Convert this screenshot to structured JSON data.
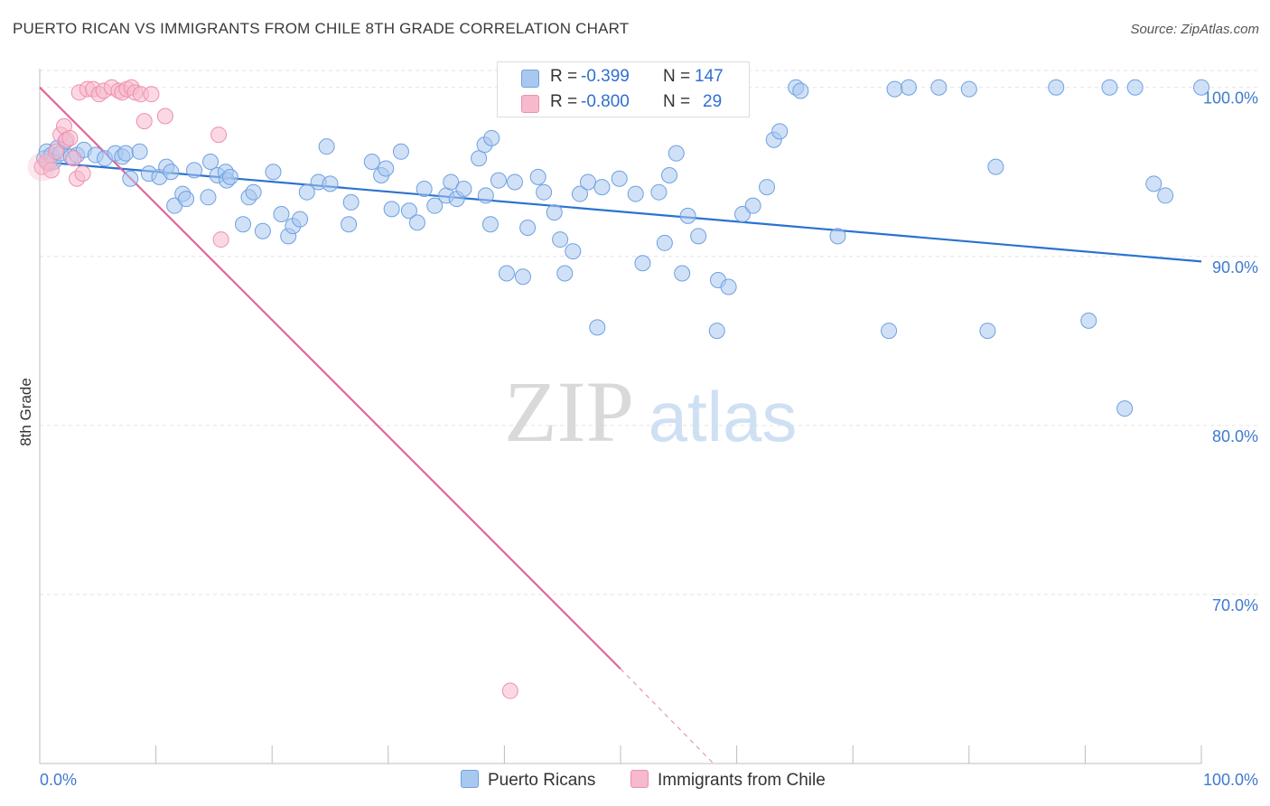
{
  "title": "PUERTO RICAN VS IMMIGRANTS FROM CHILE 8TH GRADE CORRELATION CHART",
  "source": "Source: ZipAtlas.com",
  "watermark": {
    "zip": "ZIP",
    "atlas": "atlas"
  },
  "colors": {
    "blue_fill": "#a9c8f0",
    "blue_stroke": "#6ea0e0",
    "blue_line": "#2a72d0",
    "pink_fill": "#f7b9cc",
    "pink_stroke": "#ee8fae",
    "pink_line": "#e0679a",
    "axis_label": "#3e7ad0",
    "grid": "#e3e3e3"
  },
  "legend_top": {
    "rows": [
      {
        "r_label": "R = ",
        "r_value": "-0.399",
        "n_label": "N = ",
        "n_value": "147",
        "color": "#a9c8f0",
        "border": "#6ea0e0"
      },
      {
        "r_label": "R = ",
        "r_value": "-0.800",
        "n_label": "N = ",
        "n_value": "29",
        "color": "#f7b9cc",
        "border": "#ee8fae"
      }
    ]
  },
  "legend_bottom": [
    {
      "label": "Puerto Ricans",
      "color": "#a9c8f0",
      "border": "#6ea0e0"
    },
    {
      "label": "Immigrants from Chile",
      "color": "#f7b9cc",
      "border": "#ee8fae"
    }
  ],
  "chart_data": {
    "type": "scatter",
    "title": "PUERTO RICAN VS IMMIGRANTS FROM CHILE 8TH GRADE CORRELATION CHART",
    "xlabel": "",
    "ylabel": "8th Grade",
    "xlim": [
      0,
      100
    ],
    "ylim": [
      60,
      101
    ],
    "x_tick_labels": [
      "0.0%",
      "100.0%"
    ],
    "y_ticks": [
      70,
      80,
      90,
      100
    ],
    "y_tick_labels": [
      "70.0%",
      "80.0%",
      "90.0%",
      "100.0%"
    ],
    "grid": "horizontal dashed",
    "legend": "top-center",
    "series": [
      {
        "name": "Puerto Ricans",
        "color": "#a9c8f0",
        "points": [
          [
            0.4,
            95.8
          ],
          [
            0.6,
            96.2
          ],
          [
            0.8,
            95.5
          ],
          [
            1.0,
            96.0
          ],
          [
            1.2,
            95.6
          ],
          [
            1.5,
            96.4
          ],
          [
            1.8,
            96.1
          ],
          [
            2.2,
            96.8
          ],
          [
            2.7,
            95.9
          ],
          [
            3.2,
            96.0
          ],
          [
            3.8,
            96.3
          ],
          [
            4.8,
            96.0
          ],
          [
            5.6,
            95.8
          ],
          [
            6.5,
            96.1
          ],
          [
            7.1,
            95.9
          ],
          [
            7.4,
            96.1
          ],
          [
            7.8,
            94.6
          ],
          [
            8.6,
            96.2
          ],
          [
            9.4,
            94.9
          ],
          [
            10.3,
            94.7
          ],
          [
            10.9,
            95.3
          ],
          [
            11.3,
            95.0
          ],
          [
            11.6,
            93.0
          ],
          [
            12.3,
            93.7
          ],
          [
            12.6,
            93.4
          ],
          [
            13.3,
            95.1
          ],
          [
            14.5,
            93.5
          ],
          [
            14.7,
            95.6
          ],
          [
            15.3,
            94.8
          ],
          [
            16.0,
            95.0
          ],
          [
            16.1,
            94.5
          ],
          [
            16.4,
            94.7
          ],
          [
            17.5,
            91.9
          ],
          [
            18.0,
            93.5
          ],
          [
            18.4,
            93.8
          ],
          [
            19.2,
            91.5
          ],
          [
            20.1,
            95.0
          ],
          [
            20.8,
            92.5
          ],
          [
            21.4,
            91.2
          ],
          [
            21.8,
            91.8
          ],
          [
            22.4,
            92.2
          ],
          [
            23.0,
            93.8
          ],
          [
            24.0,
            94.4
          ],
          [
            24.7,
            96.5
          ],
          [
            25.0,
            94.3
          ],
          [
            26.6,
            91.9
          ],
          [
            26.8,
            93.2
          ],
          [
            28.6,
            95.6
          ],
          [
            29.4,
            94.8
          ],
          [
            29.8,
            95.2
          ],
          [
            30.3,
            92.8
          ],
          [
            31.1,
            96.2
          ],
          [
            31.8,
            92.7
          ],
          [
            32.5,
            92.0
          ],
          [
            33.1,
            94.0
          ],
          [
            34.0,
            93.0
          ],
          [
            35.0,
            93.6
          ],
          [
            35.4,
            94.4
          ],
          [
            35.9,
            93.4
          ],
          [
            36.5,
            94.0
          ],
          [
            37.8,
            95.8
          ],
          [
            38.3,
            96.6
          ],
          [
            38.4,
            93.6
          ],
          [
            38.8,
            91.9
          ],
          [
            38.9,
            97.0
          ],
          [
            39.5,
            94.5
          ],
          [
            40.2,
            89.0
          ],
          [
            40.9,
            94.4
          ],
          [
            41.6,
            88.8
          ],
          [
            42.0,
            91.7
          ],
          [
            42.9,
            94.7
          ],
          [
            43.4,
            93.8
          ],
          [
            44.3,
            92.6
          ],
          [
            44.8,
            91.0
          ],
          [
            45.2,
            89.0
          ],
          [
            45.9,
            90.3
          ],
          [
            46.5,
            93.7
          ],
          [
            47.2,
            94.4
          ],
          [
            47.7,
            99.9
          ],
          [
            48.0,
            85.8
          ],
          [
            48.4,
            94.1
          ],
          [
            49.9,
            94.6
          ],
          [
            50.7,
            98.7
          ],
          [
            51.3,
            93.7
          ],
          [
            51.9,
            89.6
          ],
          [
            53.3,
            93.8
          ],
          [
            53.8,
            90.8
          ],
          [
            54.2,
            94.8
          ],
          [
            54.8,
            96.1
          ],
          [
            55.3,
            89.0
          ],
          [
            55.8,
            92.4
          ],
          [
            56.7,
            91.2
          ],
          [
            58.3,
            85.6
          ],
          [
            58.4,
            88.6
          ],
          [
            59.3,
            88.2
          ],
          [
            60.5,
            92.5
          ],
          [
            61.4,
            93.0
          ],
          [
            62.6,
            94.1
          ],
          [
            63.2,
            96.9
          ],
          [
            63.7,
            97.4
          ],
          [
            65.1,
            100.0
          ],
          [
            65.5,
            99.8
          ],
          [
            68.7,
            91.2
          ],
          [
            73.1,
            85.6
          ],
          [
            73.6,
            99.9
          ],
          [
            74.8,
            100.0
          ],
          [
            77.4,
            100.0
          ],
          [
            80.0,
            99.9
          ],
          [
            81.6,
            85.6
          ],
          [
            82.3,
            95.3
          ],
          [
            87.5,
            100.0
          ],
          [
            90.3,
            86.2
          ],
          [
            92.1,
            100.0
          ],
          [
            93.4,
            81.0
          ],
          [
            94.3,
            100.0
          ],
          [
            95.9,
            94.3
          ],
          [
            96.9,
            93.6
          ],
          [
            100.0,
            100.0
          ]
        ]
      },
      {
        "name": "Immigrants from Chile",
        "color": "#f7b9cc",
        "points": [
          [
            0.2,
            95.3
          ],
          [
            0.6,
            95.6
          ],
          [
            1.0,
            95.1
          ],
          [
            1.4,
            96.2
          ],
          [
            1.8,
            97.2
          ],
          [
            2.1,
            97.7
          ],
          [
            2.3,
            96.9
          ],
          [
            2.6,
            97.0
          ],
          [
            2.9,
            95.8
          ],
          [
            3.2,
            94.6
          ],
          [
            3.4,
            99.7
          ],
          [
            3.7,
            94.9
          ],
          [
            4.1,
            99.9
          ],
          [
            4.6,
            99.9
          ],
          [
            5.1,
            99.6
          ],
          [
            5.5,
            99.8
          ],
          [
            6.2,
            100.0
          ],
          [
            6.8,
            99.8
          ],
          [
            7.1,
            99.7
          ],
          [
            7.5,
            99.9
          ],
          [
            7.9,
            100.0
          ],
          [
            8.2,
            99.7
          ],
          [
            8.7,
            99.6
          ],
          [
            9.0,
            98.0
          ],
          [
            9.6,
            99.6
          ],
          [
            10.8,
            98.3
          ],
          [
            15.4,
            97.2
          ],
          [
            15.6,
            91.0
          ],
          [
            40.5,
            64.3
          ]
        ]
      }
    ],
    "trend_lines": [
      {
        "series": "Puerto Ricans",
        "x": [
          0,
          100
        ],
        "y": [
          95.6,
          89.7
        ]
      },
      {
        "series": "Immigrants from Chile",
        "x": [
          0,
          50
        ],
        "y": [
          100.0,
          65.6
        ],
        "dashed_to": [
          58.0,
          60.0
        ]
      }
    ]
  }
}
